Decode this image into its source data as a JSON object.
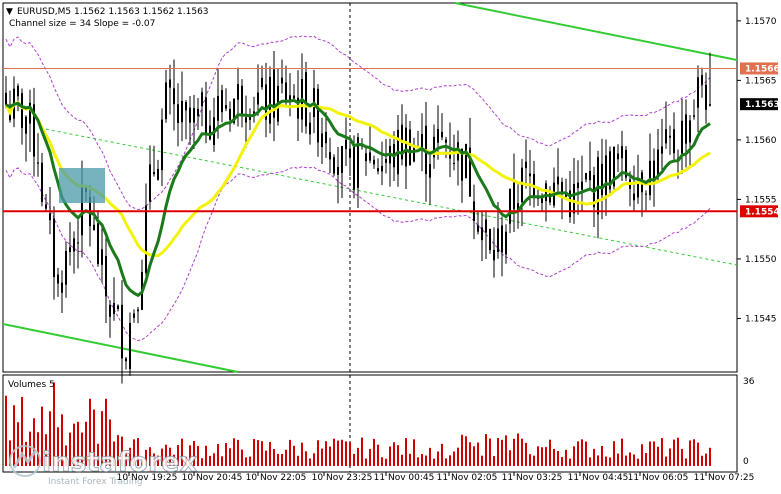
{
  "header": {
    "symbol_line": "EURUSD,M5  1.1562 1.1563 1.1562 1.1563",
    "indicator_line": "Channel size = 34 Slope = -0.07"
  },
  "volume_panel": {
    "label": "Volumes 5",
    "max_label": "36",
    "zero_label": "0"
  },
  "watermark": {
    "brand": "instaforex",
    "tagline": "Instant Forex Trading"
  },
  "price_tags": {
    "resistance": "1.1566",
    "current": "1.1563",
    "support": "1.1554"
  },
  "colors": {
    "candle": "#000000",
    "ma_fast": "#1a7a1a",
    "ma_slow": "#f2f20a",
    "channel": "#33cc33",
    "envelope": "#b040d0",
    "resistance": "#e07050",
    "support": "#dd0000",
    "volume": "#d40000",
    "current_tag": "#000000"
  },
  "chart_data": {
    "type": "candlestick",
    "symbol": "EURUSD",
    "timeframe": "M5",
    "y_ticks": [
      1.157,
      1.1565,
      1.156,
      1.1555,
      1.155,
      1.1545
    ],
    "ylim": [
      1.15405,
      1.15715
    ],
    "x_labels": [
      "10 Nov 19:25",
      "10 Nov 20:45",
      "10 Nov 22:05",
      "10 Nov 23:25",
      "11 Nov 00:45",
      "11 Nov 02:05",
      "11 Nov 03:25",
      "11 Nov 04:45",
      "11 Nov 06:05",
      "11 Nov 07:25"
    ],
    "resistance_level": 1.1566,
    "support_level": 1.1554,
    "last_price": 1.1563,
    "volume_axis_max": 36
  }
}
